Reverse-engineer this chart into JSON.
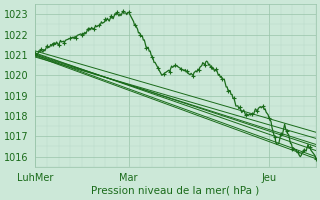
{
  "title": "Pression niveau de la mer( hPa )",
  "xlabel_ticks": [
    "LuhMer",
    "Mar",
    "Jeu"
  ],
  "xlabel_tick_positions": [
    0,
    48,
    120
  ],
  "ylim": [
    1015.5,
    1023.5
  ],
  "yticks": [
    1016,
    1017,
    1018,
    1019,
    1020,
    1021,
    1022,
    1023
  ],
  "xlim": [
    0,
    144
  ],
  "bg_color": "#cce8d8",
  "grid_color_major": "#99c4aa",
  "grid_color_minor": "#b8d8c8",
  "line_color": "#1a6b1a",
  "total_hours": 144,
  "num_series": 7,
  "straight_start_y": [
    1021.0,
    1021.1,
    1021.0,
    1020.9,
    1021.2,
    1020.95,
    1021.05
  ],
  "straight_end_y": [
    1016.0,
    1016.3,
    1016.6,
    1016.9,
    1017.2,
    1015.9,
    1016.5
  ]
}
